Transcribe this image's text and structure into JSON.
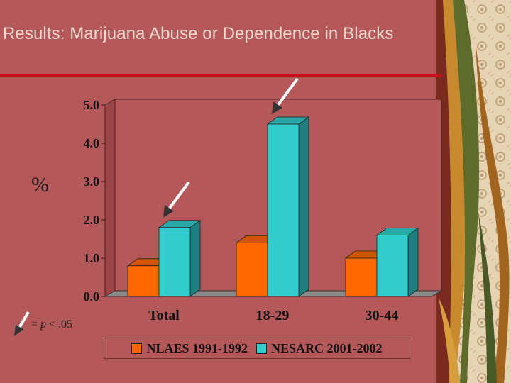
{
  "slide": {
    "title": "Results:  Marijuana Abuse or Dependence in Blacks",
    "y_label": "%",
    "significance_note": {
      "equals": "=",
      "p": "p",
      "rest": "< .05"
    }
  },
  "colors": {
    "background": "#b5585a",
    "rule": "#c4101b",
    "series1": "#ff6600",
    "series2": "#33cccc"
  },
  "chart_data": {
    "type": "bar",
    "title": "",
    "xlabel": "",
    "ylabel": "%",
    "categories": [
      "Total",
      "18-29",
      "30-44"
    ],
    "series": [
      {
        "name": "NLAES 1991-1992",
        "values": [
          0.8,
          1.4,
          1.0
        ]
      },
      {
        "name": "NESARC 2001-2002",
        "values": [
          1.8,
          4.5,
          1.6
        ]
      }
    ],
    "ylim": [
      0,
      5
    ],
    "yticks": [
      "0.0",
      "1.0",
      "2.0",
      "3.0",
      "4.0",
      "5.0"
    ],
    "significant": [
      {
        "category": "Total",
        "series": "NESARC 2001-2002"
      },
      {
        "category": "18-29",
        "series": "NESARC 2001-2002"
      }
    ],
    "legend_position": "bottom"
  }
}
